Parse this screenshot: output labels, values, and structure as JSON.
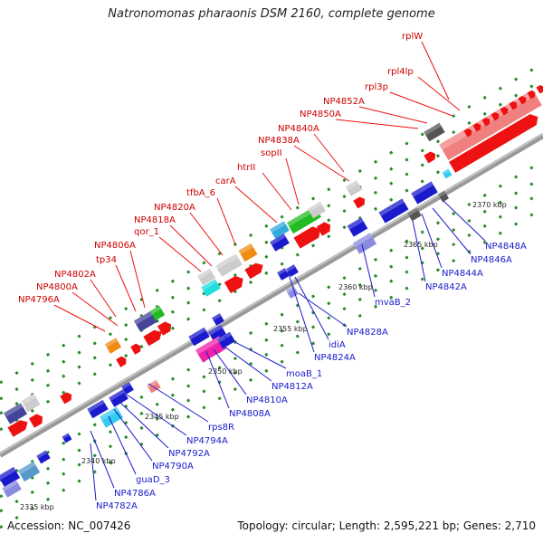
{
  "title": "Natronomonas pharaonis DSM 2160, complete genome",
  "footer": {
    "accession": "Accession: NC_007426",
    "summary": "Topology: circular; Length: 2,595,221 bp; Genes: 2,710"
  },
  "colors": {
    "forward_gene": "#ee1111",
    "reverse_gene": "#1111dd",
    "rrna": "#ee8888",
    "backbone": "#888888",
    "label_forward": "#cc0000",
    "label_reverse": "#1a1acc",
    "tick": "#227722"
  },
  "scale_labels": [
    "2335 kbp",
    "2340 kbp",
    "2345 kbp",
    "2350 kbp",
    "2355 kbp",
    "2360 kbp",
    "2365 kbp",
    "2370 kbp"
  ],
  "top_labels": [
    "rplW",
    "rpl4lp",
    "rpl3p",
    "NP4852A",
    "NP4850A",
    "NP4840A",
    "NP4838A",
    "sopII",
    "htrII",
    "carA",
    "tfbA_6",
    "NP4820A",
    "NP4818A",
    "qor_1",
    "NP4806A",
    "tp34",
    "NP4802A",
    "NP4800A",
    "NP4796A"
  ],
  "bottom_labels": [
    "NP4848A",
    "NP4846A",
    "NP4844A",
    "NP4842A",
    "mvaB_2",
    "NP4828A",
    "idiA",
    "NP4824A",
    "moaB_1",
    "NP4812A",
    "NP4810A",
    "NP4808A",
    "rps8R",
    "NP4794A",
    "NP4792A",
    "NP4790A",
    "guaD_3",
    "NP4786A",
    "NP4782A"
  ]
}
